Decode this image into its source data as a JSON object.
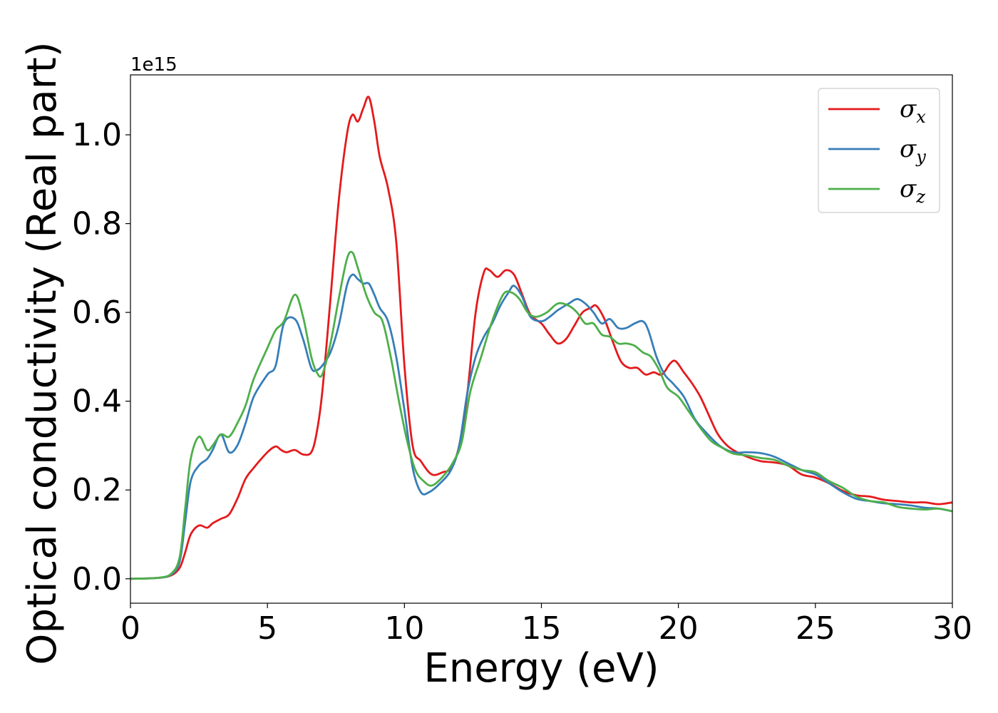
{
  "chart_data": {
    "type": "line",
    "xlabel": "Energy (eV)",
    "ylabel": "Optical conductivity (Real part)",
    "y_offset_label": "1e15",
    "xlim": [
      0,
      30
    ],
    "ylim": [
      -0.055,
      1.135
    ],
    "xticks": [
      0,
      5,
      10,
      15,
      20,
      25,
      30
    ],
    "xtick_labels": [
      "0",
      "5",
      "10",
      "15",
      "20",
      "25",
      "30"
    ],
    "yticks": [
      0.0,
      0.2,
      0.4,
      0.6,
      0.8,
      1.0
    ],
    "ytick_labels": [
      "0.0",
      "0.2",
      "0.4",
      "0.6",
      "0.8",
      "1.0"
    ],
    "grid": false,
    "legend_position": "top-right",
    "series": [
      {
        "name": "σx",
        "symbol": "σ",
        "subscript": "x",
        "color": "#e41a1c",
        "x": [
          0,
          1,
          1.5,
          1.8,
          2,
          2.2,
          2.5,
          2.8,
          3,
          3.3,
          3.6,
          3.9,
          4.2,
          4.5,
          5,
          5.3,
          5.5,
          5.7,
          6,
          6.3,
          6.6,
          6.8,
          7,
          7.3,
          7.6,
          7.9,
          8.1,
          8.3,
          8.5,
          8.7,
          8.9,
          9.1,
          9.4,
          9.7,
          10,
          10.3,
          10.6,
          11,
          11.4,
          11.7,
          12,
          12.3,
          12.6,
          12.9,
          13.1,
          13.4,
          13.7,
          14,
          14.3,
          14.6,
          15,
          15.3,
          15.6,
          15.9,
          16.2,
          16.5,
          16.8,
          17,
          17.3,
          17.6,
          17.9,
          18.2,
          18.5,
          18.8,
          19.1,
          19.4,
          19.7,
          19.9,
          20.2,
          20.5,
          20.8,
          21.1,
          21.4,
          21.7,
          22,
          22.5,
          23,
          23.5,
          24,
          24.5,
          25,
          25.5,
          26,
          26.5,
          27,
          27.5,
          28,
          28.5,
          29,
          29.5,
          30
        ],
        "y": [
          0,
          0.002,
          0.008,
          0.025,
          0.06,
          0.1,
          0.12,
          0.115,
          0.125,
          0.135,
          0.145,
          0.18,
          0.225,
          0.25,
          0.285,
          0.298,
          0.29,
          0.285,
          0.29,
          0.28,
          0.285,
          0.33,
          0.42,
          0.63,
          0.85,
          1.0,
          1.045,
          1.03,
          1.06,
          1.085,
          1.03,
          0.95,
          0.88,
          0.76,
          0.48,
          0.3,
          0.265,
          0.235,
          0.24,
          0.25,
          0.3,
          0.42,
          0.6,
          0.69,
          0.695,
          0.68,
          0.695,
          0.685,
          0.64,
          0.595,
          0.575,
          0.55,
          0.53,
          0.54,
          0.57,
          0.6,
          0.61,
          0.615,
          0.585,
          0.535,
          0.49,
          0.475,
          0.475,
          0.46,
          0.465,
          0.46,
          0.485,
          0.49,
          0.465,
          0.44,
          0.41,
          0.37,
          0.33,
          0.305,
          0.29,
          0.275,
          0.265,
          0.262,
          0.255,
          0.235,
          0.228,
          0.215,
          0.198,
          0.188,
          0.185,
          0.178,
          0.175,
          0.172,
          0.172,
          0.168,
          0.172
        ]
      },
      {
        "name": "σy",
        "symbol": "σ",
        "subscript": "y",
        "color": "#377eb8",
        "x": [
          0,
          1,
          1.5,
          1.8,
          2,
          2.2,
          2.5,
          2.8,
          3,
          3.3,
          3.6,
          3.9,
          4.2,
          4.5,
          5,
          5.3,
          5.6,
          6,
          6.3,
          6.6,
          6.8,
          7,
          7.3,
          7.6,
          7.9,
          8.1,
          8.3,
          8.5,
          8.7,
          8.9,
          9.1,
          9.4,
          9.7,
          10,
          10.3,
          10.6,
          10.9,
          11.3,
          11.7,
          12,
          12.3,
          12.6,
          12.9,
          13.2,
          13.5,
          13.8,
          14,
          14.3,
          14.6,
          15,
          15.3,
          15.6,
          16,
          16.3,
          16.6,
          16.9,
          17.2,
          17.5,
          17.8,
          18.1,
          18.4,
          18.7,
          18.9,
          19.2,
          19.5,
          19.8,
          20.2,
          20.6,
          21,
          21.5,
          22,
          22.5,
          23,
          23.5,
          24,
          24.5,
          25,
          25.5,
          26,
          26.5,
          27,
          27.5,
          28,
          28.5,
          29,
          29.5,
          30
        ],
        "y": [
          0,
          0.002,
          0.01,
          0.04,
          0.13,
          0.22,
          0.255,
          0.27,
          0.29,
          0.325,
          0.285,
          0.3,
          0.35,
          0.41,
          0.46,
          0.48,
          0.575,
          0.585,
          0.54,
          0.475,
          0.47,
          0.48,
          0.51,
          0.57,
          0.66,
          0.685,
          0.675,
          0.665,
          0.665,
          0.64,
          0.61,
          0.58,
          0.5,
          0.38,
          0.25,
          0.195,
          0.195,
          0.215,
          0.245,
          0.3,
          0.42,
          0.5,
          0.545,
          0.575,
          0.615,
          0.645,
          0.66,
          0.635,
          0.59,
          0.58,
          0.59,
          0.605,
          0.62,
          0.63,
          0.62,
          0.6,
          0.575,
          0.585,
          0.565,
          0.565,
          0.575,
          0.58,
          0.56,
          0.5,
          0.46,
          0.44,
          0.41,
          0.36,
          0.33,
          0.3,
          0.285,
          0.285,
          0.283,
          0.275,
          0.26,
          0.245,
          0.235,
          0.215,
          0.195,
          0.18,
          0.175,
          0.17,
          0.168,
          0.165,
          0.16,
          0.158,
          0.152
        ]
      },
      {
        "name": "σz",
        "symbol": "σ",
        "subscript": "z",
        "color": "#4daf4a",
        "x": [
          0,
          1,
          1.5,
          1.8,
          2,
          2.2,
          2.5,
          2.8,
          3,
          3.3,
          3.6,
          3.9,
          4.2,
          4.5,
          5,
          5.3,
          5.6,
          6,
          6.3,
          6.6,
          6.8,
          7,
          7.3,
          7.6,
          7.9,
          8.1,
          8.3,
          8.6,
          8.9,
          9.2,
          9.5,
          9.8,
          10.1,
          10.4,
          10.7,
          11,
          11.4,
          11.8,
          12.1,
          12.4,
          12.8,
          13.2,
          13.6,
          13.9,
          14.2,
          14.5,
          14.8,
          15.2,
          15.6,
          16,
          16.3,
          16.6,
          16.9,
          17.2,
          17.5,
          17.8,
          18.1,
          18.4,
          18.7,
          19,
          19.3,
          19.6,
          20,
          20.4,
          20.8,
          21.2,
          21.6,
          22,
          22.5,
          23,
          23.5,
          24,
          24.5,
          25,
          25.5,
          26,
          26.5,
          27,
          27.5,
          28,
          28.5,
          29,
          29.5,
          30
        ],
        "y": [
          0,
          0.002,
          0.012,
          0.05,
          0.16,
          0.27,
          0.32,
          0.29,
          0.3,
          0.325,
          0.32,
          0.35,
          0.39,
          0.45,
          0.52,
          0.56,
          0.58,
          0.64,
          0.59,
          0.5,
          0.465,
          0.46,
          0.53,
          0.63,
          0.72,
          0.735,
          0.7,
          0.64,
          0.6,
          0.58,
          0.5,
          0.4,
          0.31,
          0.245,
          0.22,
          0.21,
          0.23,
          0.265,
          0.31,
          0.42,
          0.5,
          0.58,
          0.64,
          0.645,
          0.63,
          0.6,
          0.59,
          0.6,
          0.62,
          0.615,
          0.6,
          0.575,
          0.575,
          0.55,
          0.545,
          0.53,
          0.53,
          0.525,
          0.51,
          0.5,
          0.47,
          0.43,
          0.41,
          0.375,
          0.34,
          0.31,
          0.295,
          0.282,
          0.278,
          0.272,
          0.268,
          0.255,
          0.245,
          0.24,
          0.22,
          0.205,
          0.185,
          0.175,
          0.172,
          0.162,
          0.158,
          0.156,
          0.158,
          0.152
        ]
      }
    ]
  }
}
